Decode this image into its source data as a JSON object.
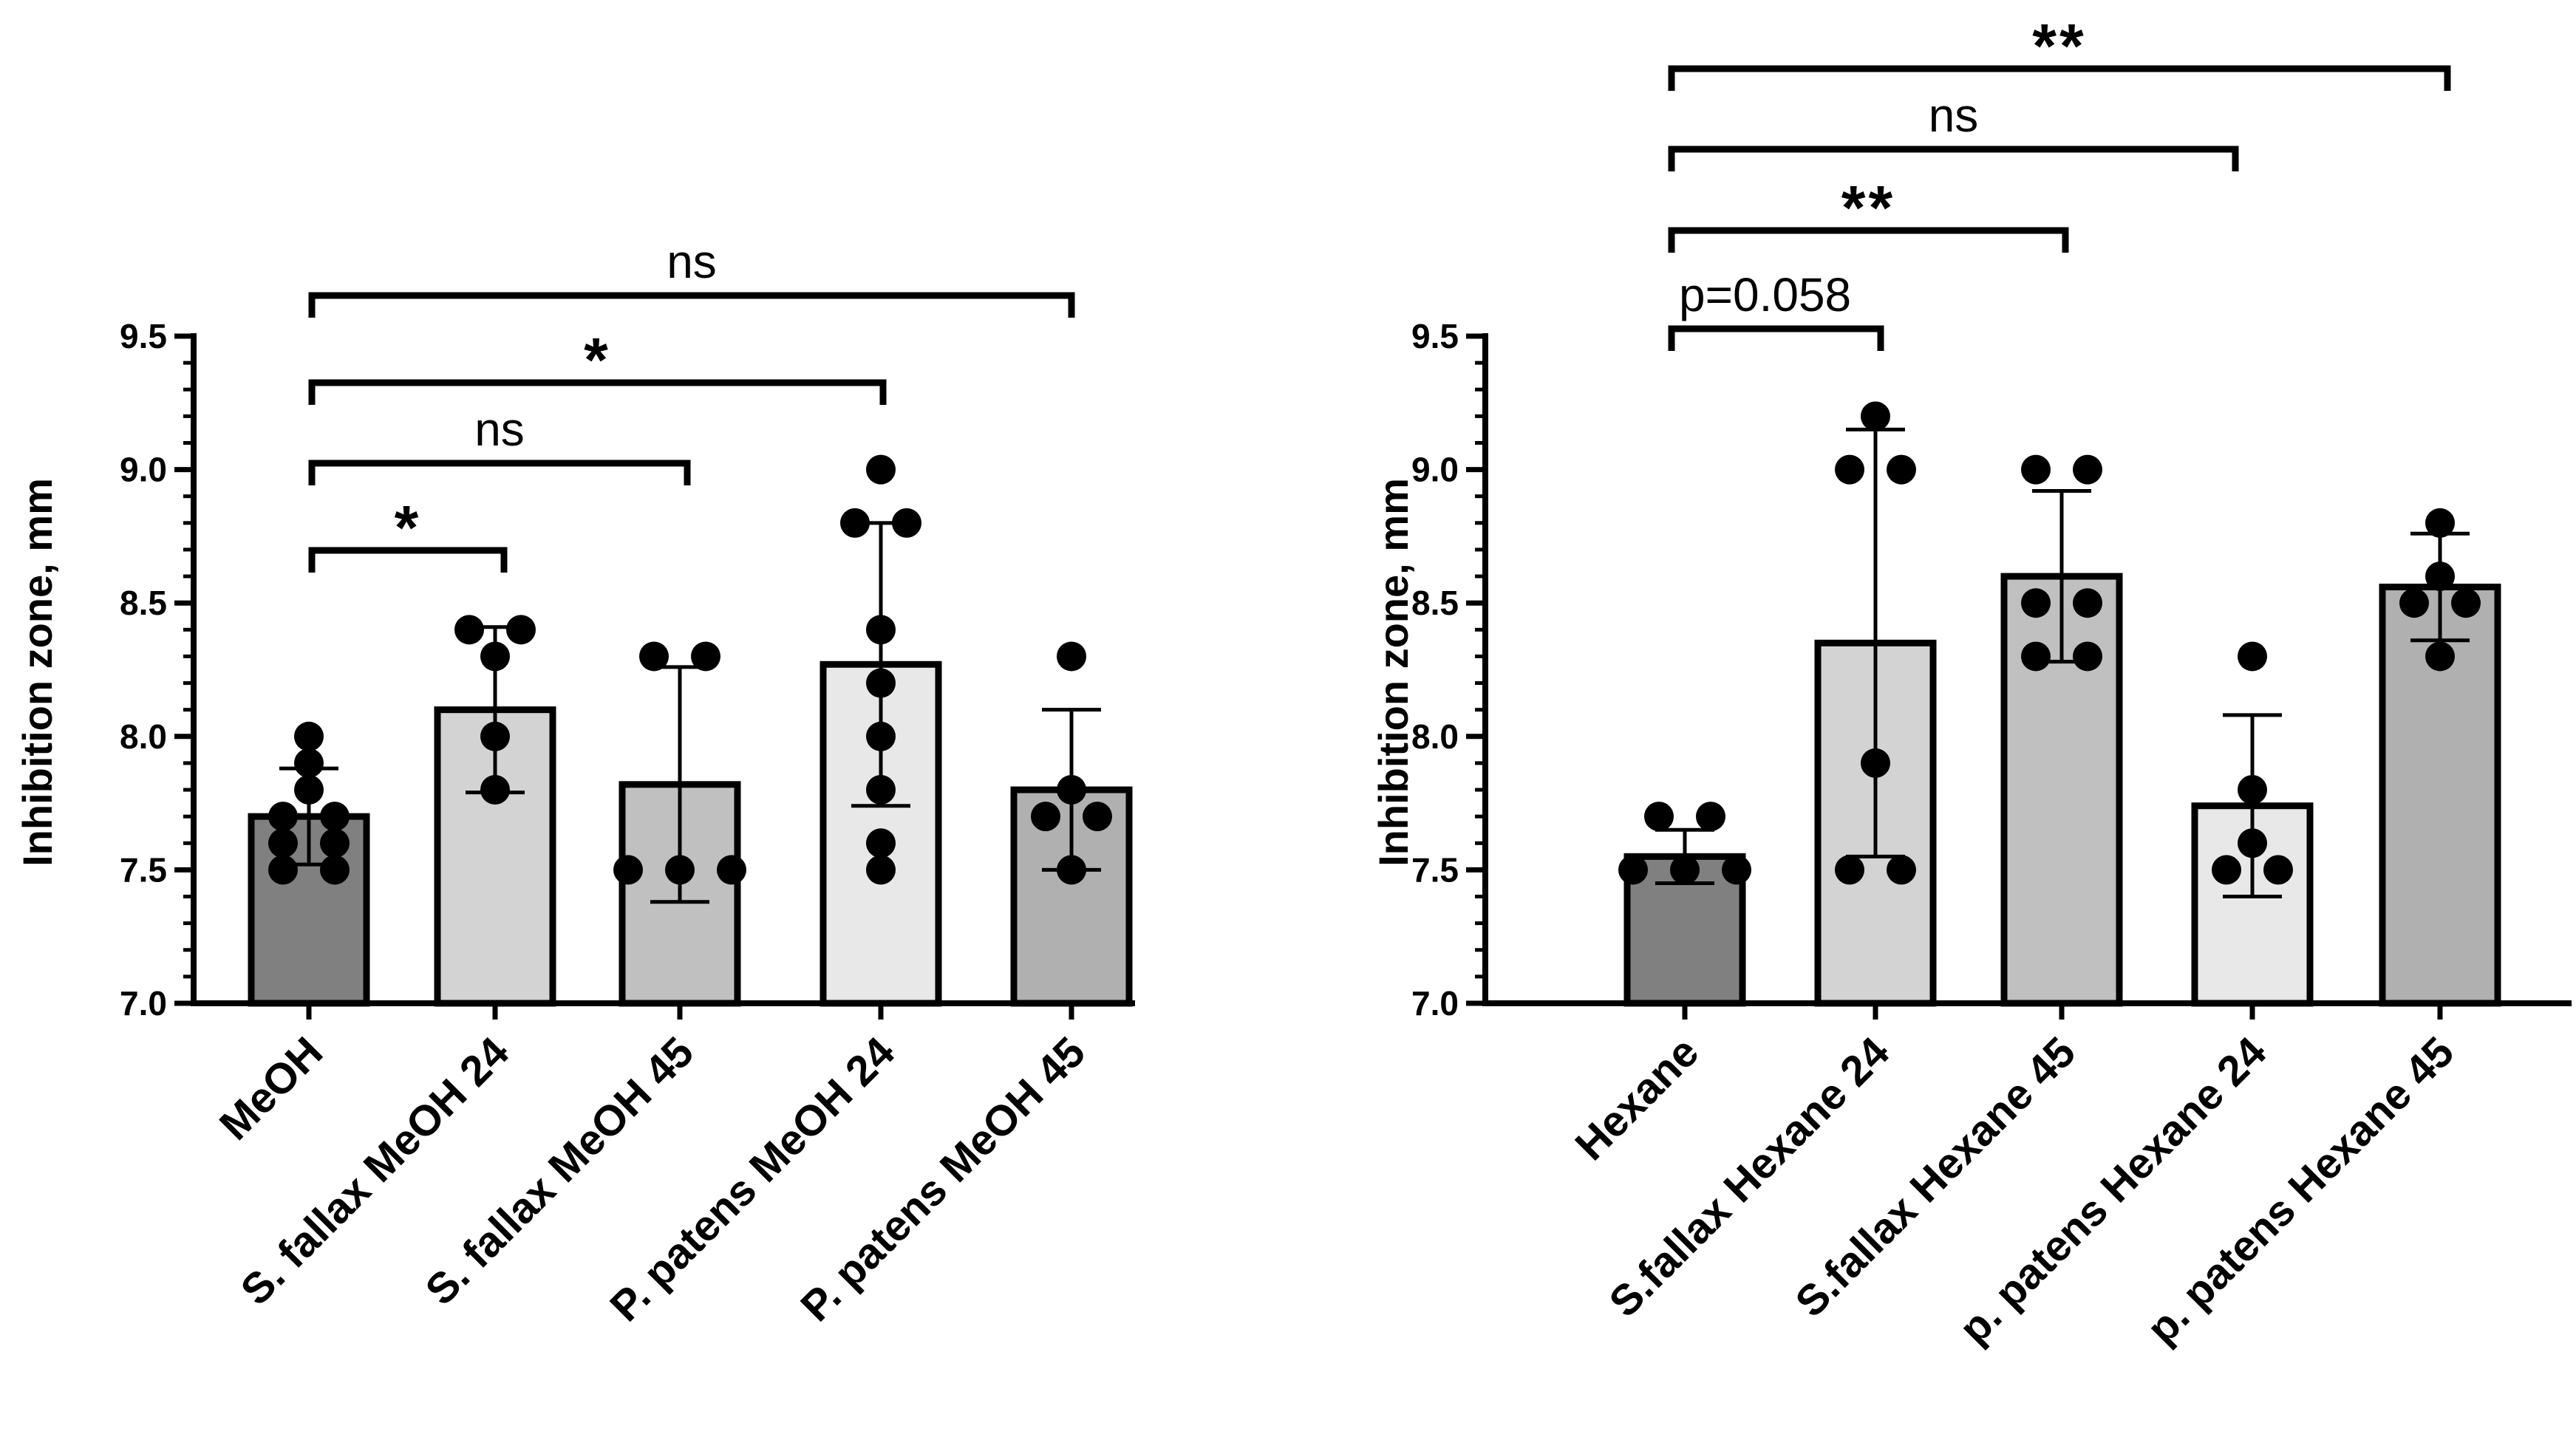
{
  "chart_data": [
    {
      "type": "bar",
      "ylabel": "Inhibition zone, mm",
      "ylim": [
        7.0,
        9.5
      ],
      "yticks": [
        "7.0",
        "7.5",
        "8.0",
        "8.5",
        "9.0",
        "9.5"
      ],
      "categories": [
        "MeOH",
        "S. fallax MeOH 24",
        "S. fallax MeOH 45",
        "P. patens MeOH 24",
        "P. patens MeOH 45"
      ],
      "bar_colors": [
        "#808080",
        "#d3d3d3",
        "#c0c0c0",
        "#e8e8e8",
        "#b0b0b0"
      ],
      "values": [
        7.7,
        8.1,
        7.82,
        8.27,
        7.8
      ],
      "sd": [
        0.18,
        0.31,
        0.44,
        0.53,
        0.3
      ],
      "points": [
        [
          7.5,
          7.5,
          7.6,
          7.6,
          7.7,
          7.7,
          7.8,
          7.9,
          8.0
        ],
        [
          7.8,
          8.0,
          8.3,
          8.4,
          8.4
        ],
        [
          7.5,
          7.5,
          7.5,
          8.3,
          8.3
        ],
        [
          7.5,
          7.6,
          7.8,
          8.0,
          8.2,
          8.4,
          8.8,
          8.8,
          9.0
        ],
        [
          7.5,
          7.7,
          7.7,
          7.8,
          8.3
        ]
      ],
      "comparisons": [
        {
          "from": 0,
          "to": 1,
          "label": "*"
        },
        {
          "from": 0,
          "to": 2,
          "label": "ns"
        },
        {
          "from": 0,
          "to": 3,
          "label": "*"
        },
        {
          "from": 0,
          "to": 4,
          "label": "ns"
        }
      ]
    },
    {
      "type": "bar",
      "ylabel": "Inhibition zone, mm",
      "ylim": [
        7.0,
        9.5
      ],
      "yticks": [
        "7.0",
        "7.5",
        "8.0",
        "8.5",
        "9.0",
        "9.5"
      ],
      "categories": [
        "Hexane",
        "S.fallax Hexane 24",
        "S.fallax Hexane 45",
        "p. patens Hexane 24",
        "p. patens Hexane 45"
      ],
      "bar_colors": [
        "#808080",
        "#d3d3d3",
        "#c0c0c0",
        "#e8e8e8",
        "#b0b0b0"
      ],
      "values": [
        7.55,
        8.35,
        8.6,
        7.74,
        8.56
      ],
      "sd": [
        0.1,
        0.8,
        0.32,
        0.34,
        0.2
      ],
      "points": [
        [
          7.5,
          7.5,
          7.5,
          7.7,
          7.7
        ],
        [
          7.5,
          7.5,
          7.9,
          9.0,
          9.0,
          9.2
        ],
        [
          8.3,
          8.3,
          8.5,
          8.5,
          9.0,
          9.0
        ],
        [
          7.5,
          7.5,
          7.6,
          7.8,
          8.3
        ],
        [
          8.3,
          8.5,
          8.5,
          8.6,
          8.8
        ]
      ],
      "comparisons": [
        {
          "from": 0,
          "to": 1,
          "label": "p=0.058"
        },
        {
          "from": 0,
          "to": 2,
          "label": "**"
        },
        {
          "from": 0,
          "to": 3,
          "label": "ns"
        },
        {
          "from": 0,
          "to": 4,
          "label": "**"
        }
      ]
    }
  ]
}
